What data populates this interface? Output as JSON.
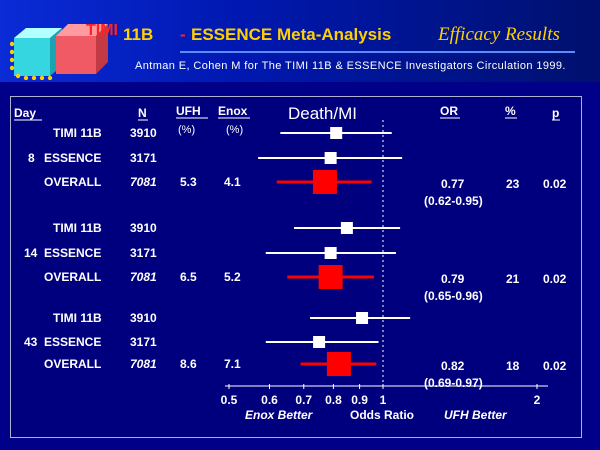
{
  "header": {
    "timi": "TIMI",
    "num": "11B",
    "dash": "-",
    "title": "ESSENCE Meta-Analysis",
    "efficacy": "Efficacy Results",
    "citation": "Antman E, Cohen M for The TIMI 11B & ESSENCE Investigators Circulation 1999."
  },
  "columns": {
    "day": "Day",
    "n": "N",
    "ufh": "UFH",
    "ufh_unit": "(%)",
    "enox": "Enox",
    "enox_unit": "(%)",
    "endpoint": "Death/MI",
    "or": "OR",
    "pct": "%",
    "p": "p"
  },
  "axis": {
    "ticks": [
      "0.5",
      "0.6",
      "0.7",
      "0.8",
      "0.9",
      "1",
      "2"
    ],
    "left_label": "Enox Better",
    "center_label": "Odds Ratio",
    "right_label": "UFH Better"
  },
  "chart_data": {
    "type": "forest",
    "endpoint": "Death/MI",
    "xlabel": "Odds Ratio",
    "scale": "log",
    "xlim": [
      0.5,
      2
    ],
    "reference_line": 1,
    "groups": [
      {
        "day": "8",
        "rows": [
          {
            "study": "TIMI 11B",
            "n": "3910",
            "or": 0.81,
            "ci": [
              0.63,
              1.04
            ],
            "overall": false
          },
          {
            "study": "ESSENCE",
            "n": "3171",
            "or": 0.79,
            "ci": [
              0.57,
              1.09
            ],
            "overall": false
          },
          {
            "study": "OVERALL",
            "n": "7081",
            "ufh": "5.3",
            "enox": "4.1",
            "or": 0.77,
            "ci": [
              0.62,
              0.95
            ],
            "or_text": "0.77",
            "ci_text": "(0.62-0.95)",
            "pct": "23",
            "p": "0.02",
            "overall": true
          }
        ]
      },
      {
        "day": "14",
        "rows": [
          {
            "study": "TIMI 11B",
            "n": "3910",
            "or": 0.85,
            "ci": [
              0.67,
              1.08
            ],
            "overall": false
          },
          {
            "study": "ESSENCE",
            "n": "3171",
            "or": 0.79,
            "ci": [
              0.59,
              1.06
            ],
            "overall": false
          },
          {
            "study": "OVERALL",
            "n": "7081",
            "ufh": "6.5",
            "enox": "5.2",
            "or": 0.79,
            "ci": [
              0.65,
              0.96
            ],
            "or_text": "0.79",
            "ci_text": "(0.65-0.96)",
            "pct": "21",
            "p": "0.02",
            "overall": true
          }
        ]
      },
      {
        "day": "43",
        "rows": [
          {
            "study": "TIMI 11B",
            "n": "3910",
            "or": 0.91,
            "ci": [
              0.72,
              1.13
            ],
            "overall": false
          },
          {
            "study": "ESSENCE",
            "n": "3171",
            "or": 0.75,
            "ci": [
              0.59,
              0.98
            ],
            "overall": false
          },
          {
            "study": "OVERALL",
            "n": "7081",
            "ufh": "8.6",
            "enox": "7.1",
            "or": 0.82,
            "ci": [
              0.69,
              0.97
            ],
            "or_text": "0.82",
            "ci_text": "(0.69-0.97)",
            "pct": "18",
            "p": "0.02",
            "overall": true
          }
        ]
      }
    ]
  },
  "colors": {
    "background": "#000088",
    "marker_overall": "#ff0000",
    "marker_study": "#ffffff",
    "title": "#ffd000",
    "accent_red": "#ff2222"
  }
}
